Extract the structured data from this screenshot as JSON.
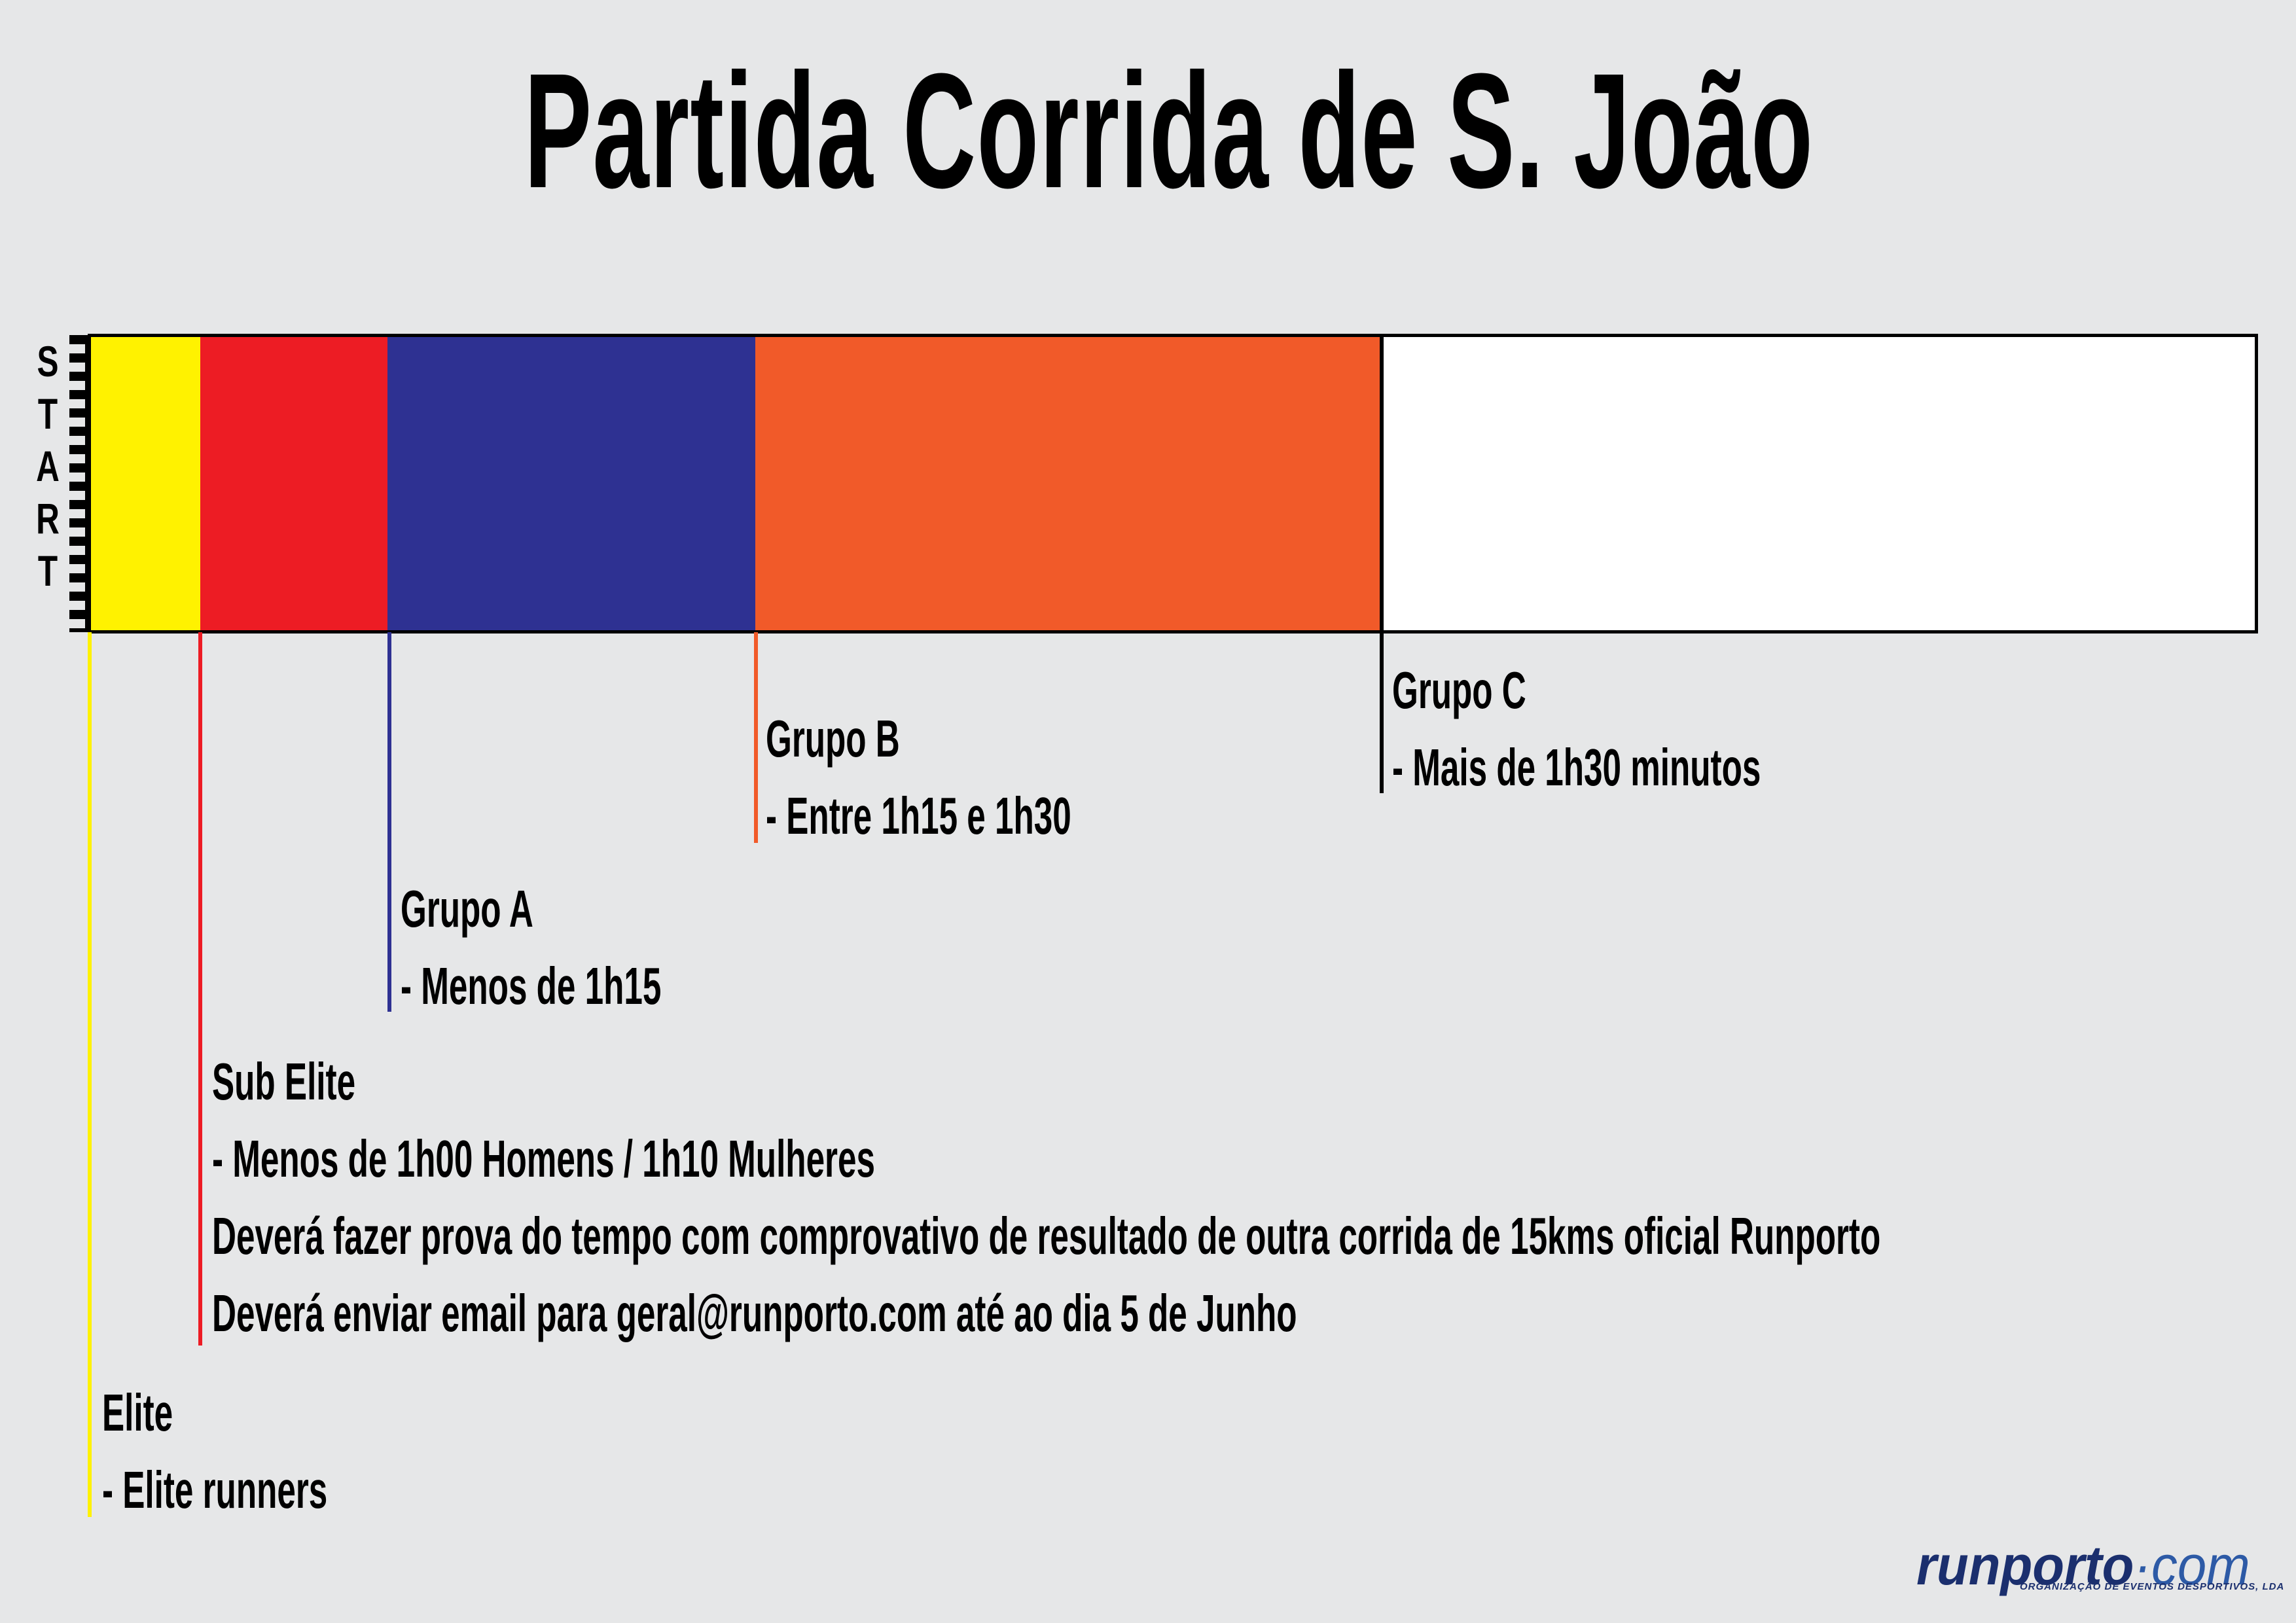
{
  "title": "Partida Corrida de S. João",
  "start": {
    "letters": [
      "S",
      "T",
      "A",
      "R",
      "T"
    ]
  },
  "colors": {
    "background": "#e6e7e8",
    "elite": "#fff200",
    "sub_elite": "#ed1c24",
    "grupo_a": "#2e3192",
    "grupo_b": "#f15a29",
    "grupo_c": "#ffffff",
    "grupo_c_line": "#000000"
  },
  "groups": [
    {
      "id": "elite",
      "name": "Elite",
      "lines": [
        "- Elite runners"
      ]
    },
    {
      "id": "sub_elite",
      "name": "Sub Elite",
      "lines": [
        "- Menos de 1h00 Homens / 1h10 Mulheres",
        "Deverá fazer prova do tempo com comprovativo de resultado de outra corrida de 15kms oficial Runporto",
        "Deverá enviar email para geral@runporto.com até ao dia 5 de Junho"
      ]
    },
    {
      "id": "grupo_a",
      "name": "Grupo A",
      "lines": [
        "- Menos de 1h15"
      ]
    },
    {
      "id": "grupo_b",
      "name": "Grupo B",
      "lines": [
        "- Entre 1h15 e 1h30"
      ]
    },
    {
      "id": "grupo_c",
      "name": "Grupo C",
      "lines": [
        "- Mais de 1h30 minutos"
      ]
    }
  ],
  "logo": {
    "brand": "runporto",
    "dot": "·",
    "suffix": "com",
    "tagline": "ORGANIZAÇÃO DE EVENTOS DESPORTIVOS, LDA"
  }
}
